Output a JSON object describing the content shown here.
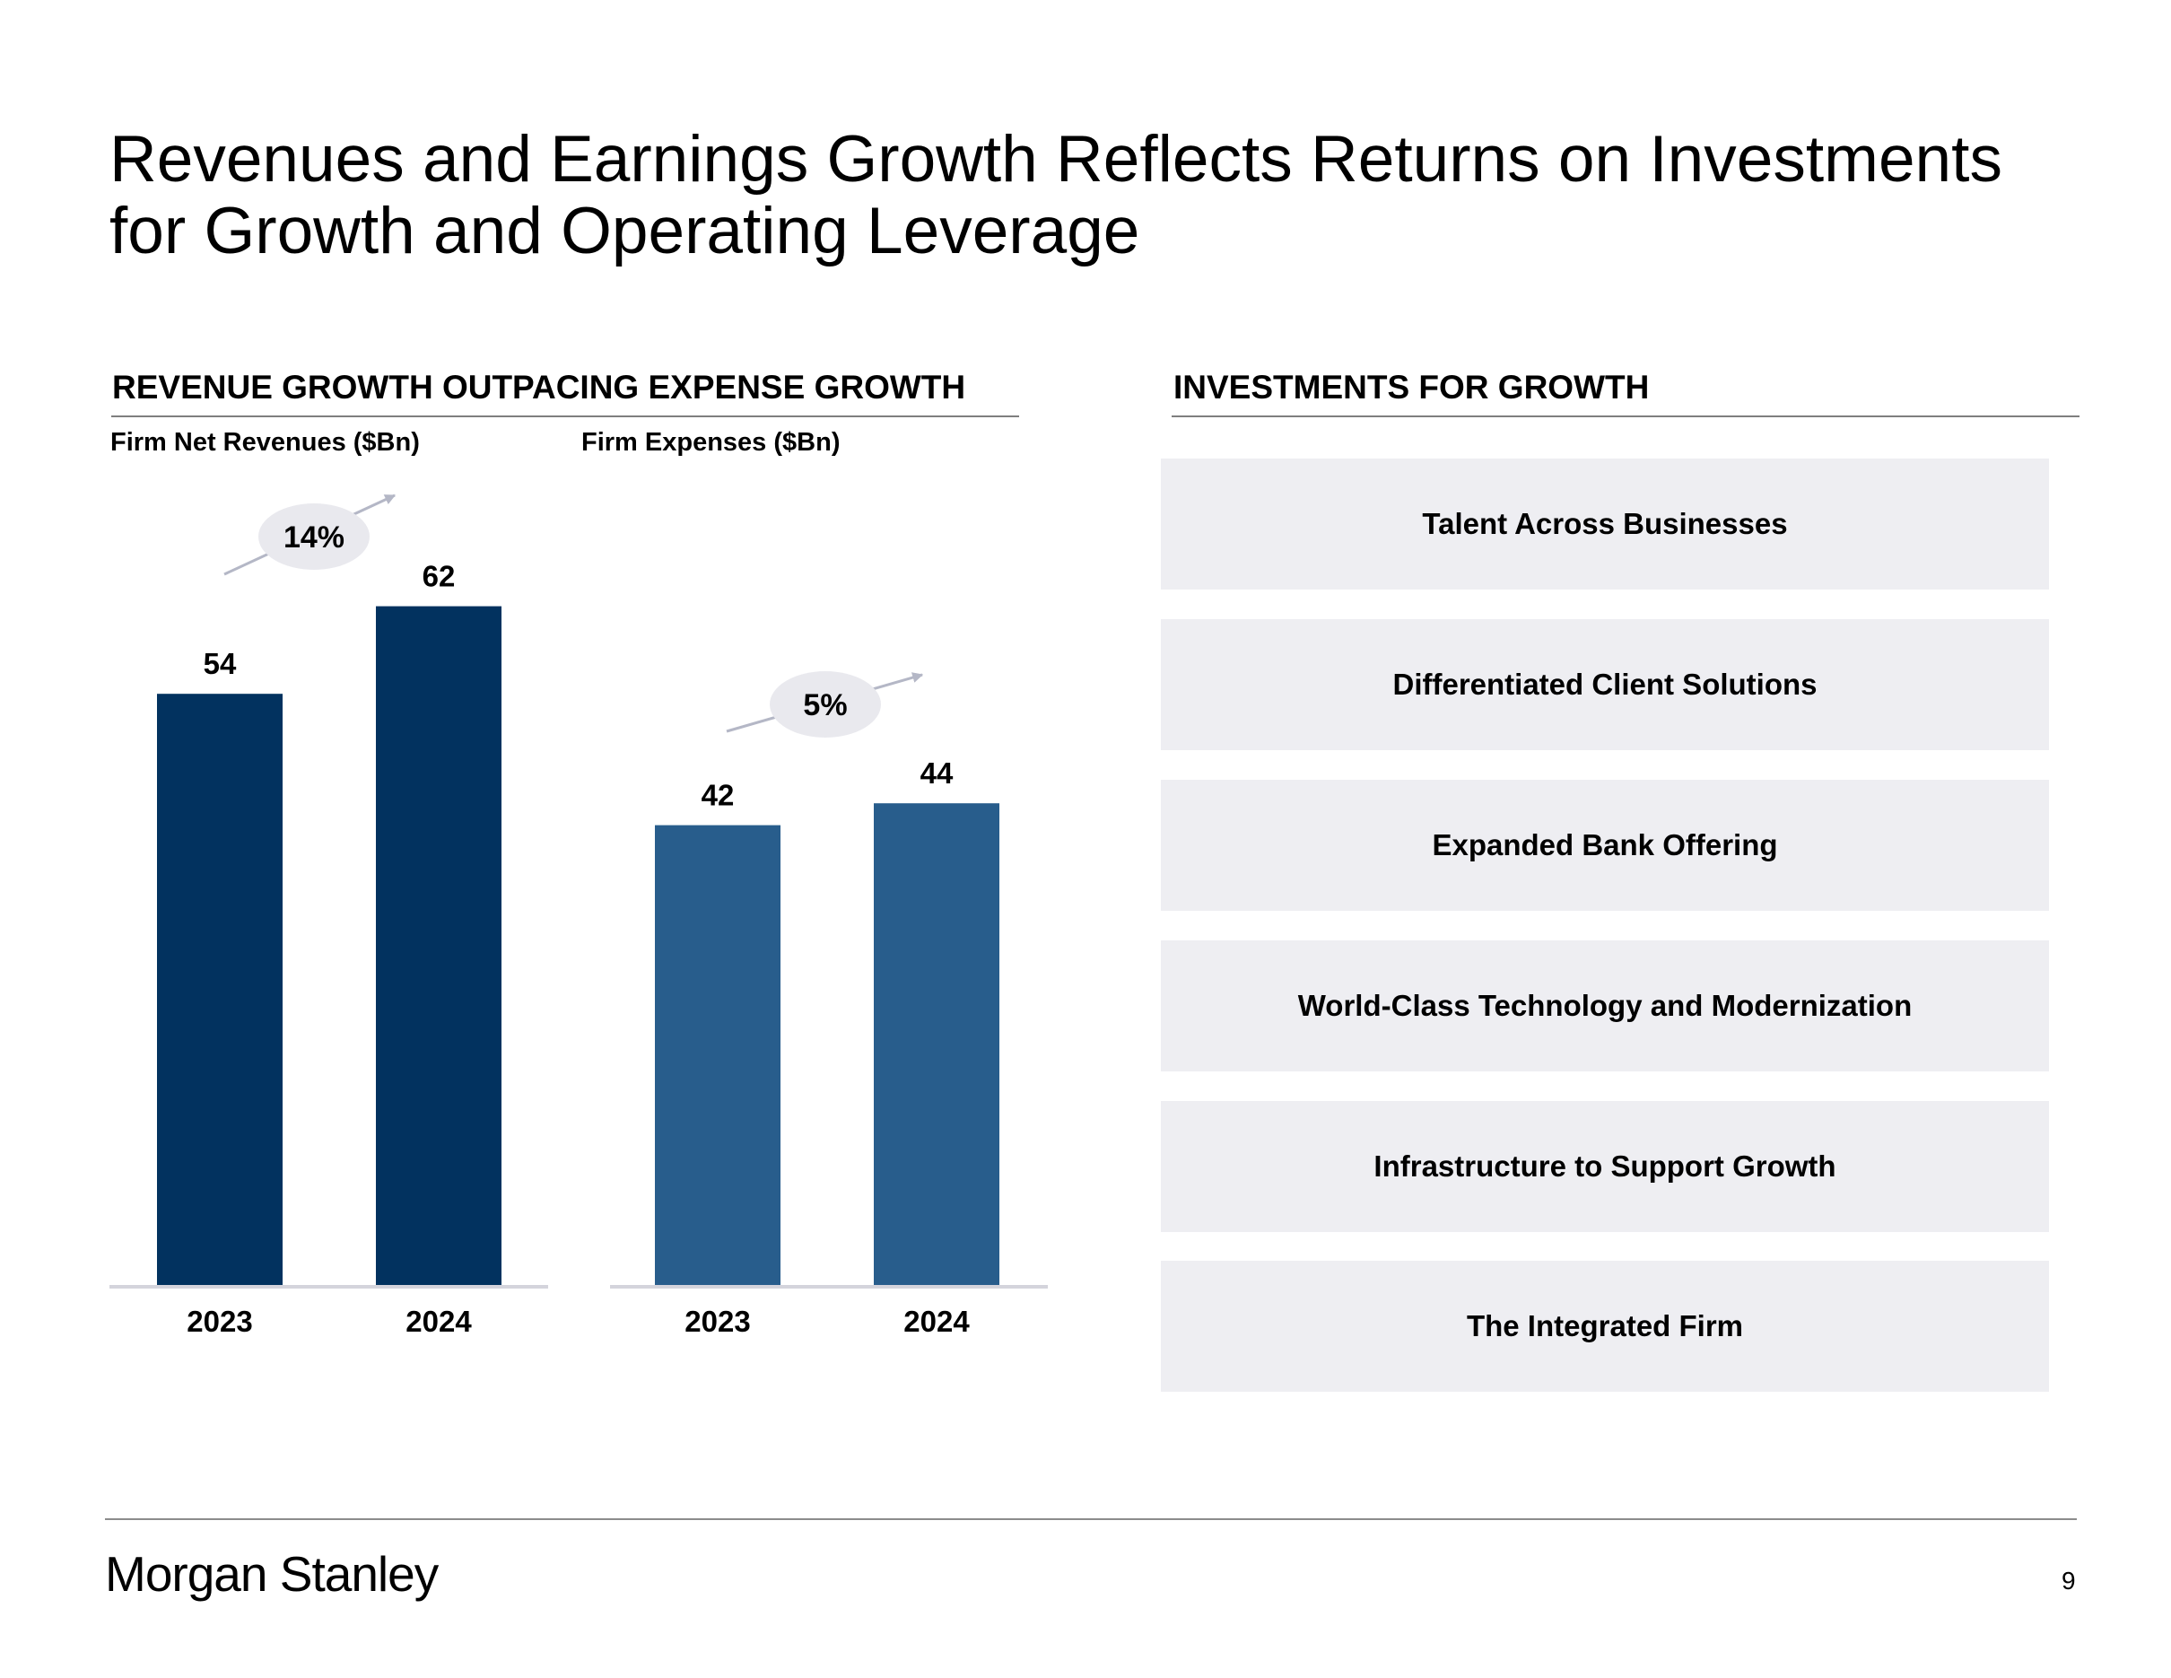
{
  "title": {
    "line1": "Revenues and Earnings Growth Reflects Returns on Investments",
    "line2": "for Growth and Operating Leverage"
  },
  "left_section": {
    "heading": "REVENUE GROWTH OUTPACING EXPENSE GROWTH"
  },
  "right_section": {
    "heading": "INVESTMENTS FOR GROWTH",
    "items": [
      "Talent Across Businesses",
      "Differentiated Client Solutions",
      "Expanded Bank Offering",
      "World-Class Technology and Modernization",
      "Infrastructure to Support Growth",
      "The Integrated Firm"
    ]
  },
  "colors": {
    "revenue_bar": "#02325f",
    "expense_bar": "#285d8c",
    "growth_bubble": "#e9e9ee",
    "arrow": "#b4b7c6"
  },
  "chart_data": [
    {
      "type": "bar",
      "title": "Firm Net Revenues ($Bn)",
      "categories": [
        "2023",
        "2024"
      ],
      "values": [
        54,
        62
      ],
      "data_labels": [
        "54",
        "62"
      ],
      "growth_label": "14%",
      "xlabel": "",
      "ylabel": "",
      "ylim": [
        0,
        62
      ]
    },
    {
      "type": "bar",
      "title": "Firm Expenses ($Bn)",
      "categories": [
        "2023",
        "2024"
      ],
      "values": [
        42,
        44
      ],
      "data_labels": [
        "42",
        "44"
      ],
      "growth_label": "5%",
      "xlabel": "",
      "ylabel": "",
      "ylim": [
        0,
        62
      ]
    }
  ],
  "footer": {
    "brand": "Morgan Stanley",
    "page_number": "9"
  }
}
